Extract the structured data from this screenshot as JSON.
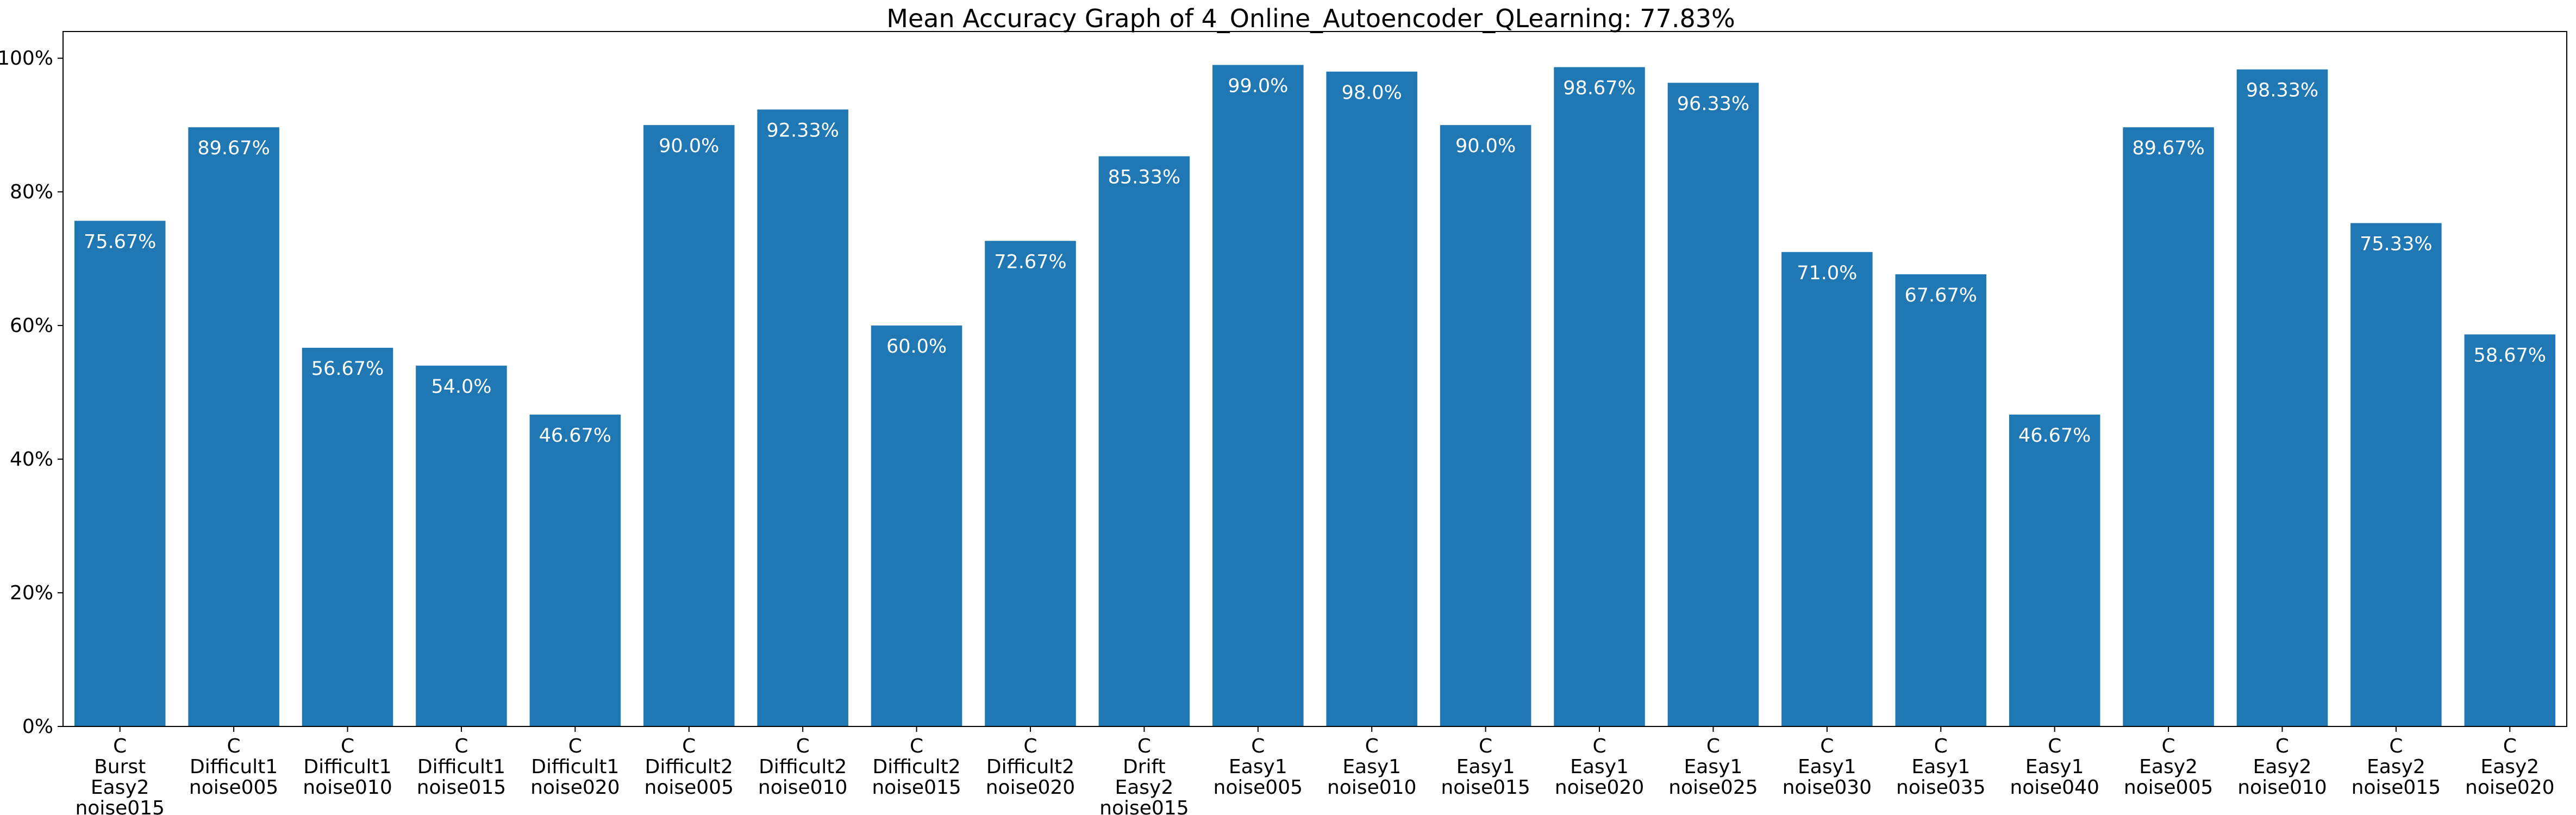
{
  "chart_data": {
    "type": "bar",
    "title": "Mean Accuracy Graph of 4_Online_Autoencoder_QLearning: 77.83%",
    "xlabel": "",
    "ylabel": "",
    "ylim": [
      0,
      104
    ],
    "yticks": [
      "0%",
      "20%",
      "40%",
      "60%",
      "80%",
      "100%"
    ],
    "ytick_values": [
      0,
      20,
      40,
      60,
      80,
      100
    ],
    "grid": false,
    "bar_color": "#1f77b4",
    "categories": [
      [
        "C",
        "Burst",
        "Easy2",
        "noise015"
      ],
      [
        "C",
        "Difficult1",
        "noise005"
      ],
      [
        "C",
        "Difficult1",
        "noise010"
      ],
      [
        "C",
        "Difficult1",
        "noise015"
      ],
      [
        "C",
        "Difficult1",
        "noise020"
      ],
      [
        "C",
        "Difficult2",
        "noise005"
      ],
      [
        "C",
        "Difficult2",
        "noise010"
      ],
      [
        "C",
        "Difficult2",
        "noise015"
      ],
      [
        "C",
        "Difficult2",
        "noise020"
      ],
      [
        "C",
        "Drift",
        "Easy2",
        "noise015"
      ],
      [
        "C",
        "Easy1",
        "noise005"
      ],
      [
        "C",
        "Easy1",
        "noise010"
      ],
      [
        "C",
        "Easy1",
        "noise015"
      ],
      [
        "C",
        "Easy1",
        "noise020"
      ],
      [
        "C",
        "Easy1",
        "noise025"
      ],
      [
        "C",
        "Easy1",
        "noise030"
      ],
      [
        "C",
        "Easy1",
        "noise035"
      ],
      [
        "C",
        "Easy1",
        "noise040"
      ],
      [
        "C",
        "Easy2",
        "noise005"
      ],
      [
        "C",
        "Easy2",
        "noise010"
      ],
      [
        "C",
        "Easy2",
        "noise015"
      ],
      [
        "C",
        "Easy2",
        "noise020"
      ]
    ],
    "values": [
      75.67,
      89.67,
      56.67,
      54.0,
      46.67,
      90.0,
      92.33,
      60.0,
      72.67,
      85.33,
      99.0,
      98.0,
      90.0,
      98.67,
      96.33,
      71.0,
      67.67,
      46.67,
      89.67,
      98.33,
      75.33,
      58.67
    ],
    "data_labels": [
      "75.67%",
      "89.67%",
      "56.67%",
      "54.0%",
      "46.67%",
      "90.0%",
      "92.33%",
      "60.0%",
      "72.67%",
      "85.33%",
      "99.0%",
      "98.0%",
      "90.0%",
      "98.67%",
      "96.33%",
      "71.0%",
      "67.67%",
      "46.67%",
      "89.67%",
      "98.33%",
      "75.33%",
      "58.67%"
    ]
  }
}
